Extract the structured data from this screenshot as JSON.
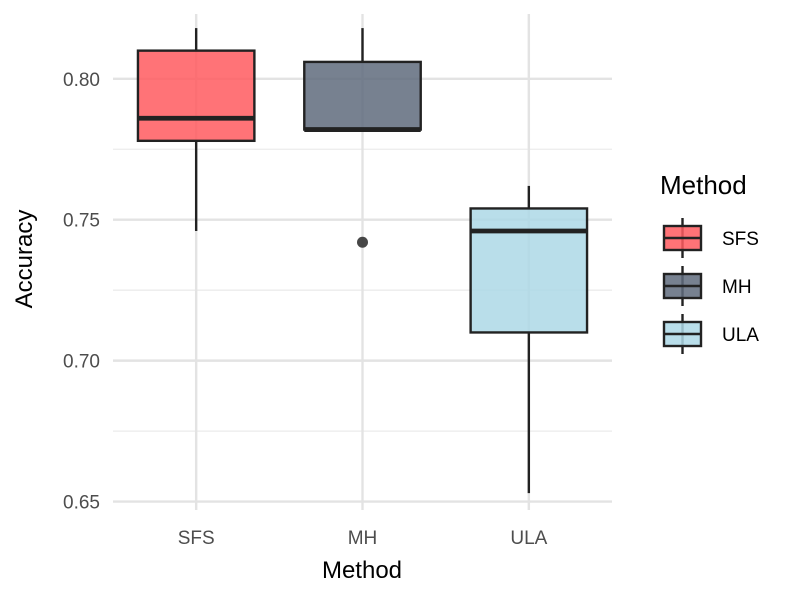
{
  "chart_data": {
    "type": "boxplot",
    "title": "",
    "xlabel": "Method",
    "ylabel": "Accuracy",
    "ylim": [
      0.647,
      0.823
    ],
    "y_ticks": [
      0.65,
      0.7,
      0.75,
      0.8
    ],
    "y_tick_labels": [
      "0.65",
      "0.70",
      "0.75",
      "0.80"
    ],
    "grid": true,
    "legend": {
      "title": "Method",
      "position": "right"
    },
    "categories": [
      "SFS",
      "MH",
      "ULA"
    ],
    "series": [
      {
        "name": "SFS",
        "color": "#ff5a5f",
        "whisker_low": 0.746,
        "q1": 0.778,
        "median": 0.786,
        "q3": 0.81,
        "whisker_high": 0.818,
        "outliers": []
      },
      {
        "name": "MH",
        "color": "#5f6b7d",
        "whisker_low": 0.782,
        "q1": 0.782,
        "median": 0.782,
        "q3": 0.806,
        "whisker_high": 0.818,
        "outliers": [
          0.742
        ]
      },
      {
        "name": "ULA",
        "color": "#add8e6",
        "whisker_low": 0.653,
        "q1": 0.71,
        "median": 0.746,
        "q3": 0.754,
        "whisker_high": 0.762,
        "outliers": []
      }
    ]
  }
}
